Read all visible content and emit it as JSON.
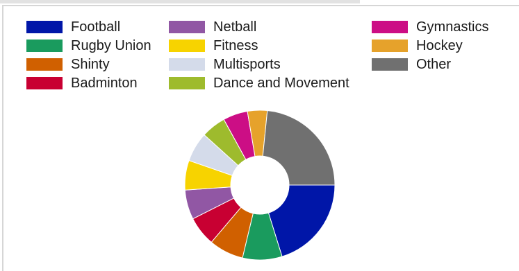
{
  "chart_data": {
    "type": "pie",
    "donut": true,
    "title": "",
    "categories": [
      "Football",
      "Rugby Union",
      "Shinty",
      "Badminton",
      "Netball",
      "Fitness",
      "Multisports",
      "Dance and Movement",
      "Gymnastics",
      "Hockey",
      "Other"
    ],
    "values": [
      19,
      8,
      7,
      6,
      6,
      6,
      6,
      5,
      5,
      4,
      22
    ],
    "colors": [
      "#0016a8",
      "#1a9b5e",
      "#d06000",
      "#c80032",
      "#9157a4",
      "#f7d300",
      "#d4dbea",
      "#9ebb2d",
      "#cc0e85",
      "#e6a22b",
      "#707070"
    ],
    "legend": {
      "placement": "top",
      "columns": [
        [
          "Football",
          "Rugby Union",
          "Shinty",
          "Badminton"
        ],
        [
          "Netball",
          "Fitness",
          "Multisports",
          "Dance and Movement"
        ],
        [
          "Gymnastics",
          "Hockey",
          "Other"
        ]
      ]
    }
  }
}
